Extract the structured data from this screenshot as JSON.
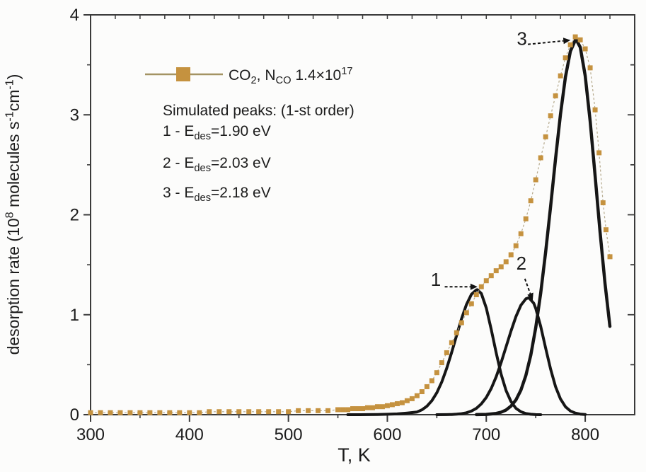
{
  "figure": {
    "background": "#fcfcfb",
    "frame_color": "#3a3a3a",
    "text_color": "#1c1c1c"
  },
  "chart_data": {
    "type": "line",
    "title": "",
    "xlabel": "T, K",
    "ylabel": "desorption rate (10^8 molecules s^-1 cm^-1)",
    "ylabel_segments": [
      {
        "t": "desorption rate (10"
      },
      {
        "t": "8",
        "sup": true
      },
      {
        "t": " molecules s"
      },
      {
        "t": "-1",
        "sup": true
      },
      {
        "t": "cm"
      },
      {
        "t": "-1",
        "sup": true
      },
      {
        "t": ")"
      }
    ],
    "xlim": [
      300,
      850
    ],
    "ylim": [
      0,
      4
    ],
    "x_major_ticks": [
      300,
      400,
      500,
      600,
      700,
      800
    ],
    "x_minor_step": 50,
    "x_top_minor_step": 25,
    "y_major_ticks": [
      0,
      1,
      2,
      3,
      4
    ],
    "y_minor_step": 0.5,
    "grid": false,
    "legend_position": "upper-left-inside",
    "series": [
      {
        "name": "simulated-peak-1",
        "type": "line",
        "color": "#161616",
        "width": 4,
        "E_des_eV": 1.9,
        "peak_T_K": 691,
        "peak_height": 1.25,
        "points": [
          [
            560,
            0.0
          ],
          [
            570,
            0.0
          ],
          [
            580,
            0.001
          ],
          [
            590,
            0.002
          ],
          [
            600,
            0.004
          ],
          [
            610,
            0.008
          ],
          [
            620,
            0.016
          ],
          [
            630,
            0.027
          ],
          [
            635,
            0.049
          ],
          [
            640,
            0.085
          ],
          [
            645,
            0.14
          ],
          [
            650,
            0.22
          ],
          [
            655,
            0.328
          ],
          [
            660,
            0.463
          ],
          [
            665,
            0.622
          ],
          [
            670,
            0.792
          ],
          [
            675,
            0.96
          ],
          [
            680,
            1.103
          ],
          [
            685,
            1.204
          ],
          [
            690,
            1.249
          ],
          [
            691,
            1.25
          ],
          [
            695,
            1.212
          ],
          [
            700,
            1.067
          ],
          [
            705,
            0.852
          ],
          [
            710,
            0.618
          ],
          [
            715,
            0.406
          ],
          [
            720,
            0.242
          ],
          [
            725,
            0.131
          ],
          [
            730,
            0.064
          ],
          [
            735,
            0.029
          ],
          [
            740,
            0.011
          ],
          [
            745,
            0.004
          ],
          [
            750,
            0.001
          ],
          [
            755,
            0.0
          ]
        ]
      },
      {
        "name": "simulated-peak-2",
        "type": "line",
        "color": "#161616",
        "width": 4,
        "E_des_eV": 2.03,
        "peak_T_K": 743,
        "peak_height": 1.17,
        "points": [
          [
            650,
            0.0
          ],
          [
            660,
            0.001
          ],
          [
            665,
            0.002
          ],
          [
            670,
            0.005
          ],
          [
            675,
            0.01
          ],
          [
            680,
            0.019
          ],
          [
            685,
            0.036
          ],
          [
            690,
            0.064
          ],
          [
            695,
            0.108
          ],
          [
            700,
            0.173
          ],
          [
            705,
            0.263
          ],
          [
            710,
            0.38
          ],
          [
            715,
            0.52
          ],
          [
            720,
            0.678
          ],
          [
            725,
            0.837
          ],
          [
            730,
            0.982
          ],
          [
            735,
            1.095
          ],
          [
            740,
            1.159
          ],
          [
            743,
            1.17
          ],
          [
            748,
            1.114
          ],
          [
            750,
            1.063
          ],
          [
            755,
            0.883
          ],
          [
            760,
            0.665
          ],
          [
            765,
            0.455
          ],
          [
            770,
            0.282
          ],
          [
            775,
            0.158
          ],
          [
            780,
            0.08
          ],
          [
            785,
            0.037
          ],
          [
            790,
            0.016
          ],
          [
            795,
            0.006
          ],
          [
            800,
            0.002
          ]
        ]
      },
      {
        "name": "simulated-peak-3",
        "type": "line",
        "color": "#161616",
        "width": 4.5,
        "E_des_eV": 2.18,
        "peak_T_K": 791,
        "peak_height": 3.75,
        "points": [
          [
            690,
            0.001
          ],
          [
            700,
            0.003
          ],
          [
            710,
            0.013
          ],
          [
            715,
            0.025
          ],
          [
            720,
            0.047
          ],
          [
            725,
            0.086
          ],
          [
            730,
            0.148
          ],
          [
            735,
            0.246
          ],
          [
            740,
            0.392
          ],
          [
            745,
            0.597
          ],
          [
            750,
            0.872
          ],
          [
            755,
            1.218
          ],
          [
            760,
            1.629
          ],
          [
            765,
            2.085
          ],
          [
            770,
            2.557
          ],
          [
            775,
            3.003
          ],
          [
            780,
            3.376
          ],
          [
            785,
            3.635
          ],
          [
            790,
            3.747
          ],
          [
            791,
            3.75
          ],
          [
            795,
            3.676
          ],
          [
            800,
            3.389
          ],
          [
            805,
            2.935
          ],
          [
            810,
            2.388
          ],
          [
            815,
            1.825
          ],
          [
            820,
            1.311
          ],
          [
            825,
            0.884
          ]
        ]
      },
      {
        "name": "experimental-co2",
        "type": "scatter-line",
        "color": "#c5923f",
        "line_color": "#b5a98c",
        "marker": "square",
        "marker_size": 7,
        "points": [
          [
            300,
            0.02
          ],
          [
            310,
            0.02
          ],
          [
            320,
            0.02
          ],
          [
            330,
            0.02
          ],
          [
            340,
            0.02
          ],
          [
            350,
            0.02
          ],
          [
            360,
            0.02
          ],
          [
            370,
            0.02
          ],
          [
            380,
            0.02
          ],
          [
            390,
            0.02
          ],
          [
            400,
            0.02
          ],
          [
            410,
            0.02
          ],
          [
            420,
            0.03
          ],
          [
            430,
            0.03
          ],
          [
            440,
            0.03
          ],
          [
            450,
            0.03
          ],
          [
            460,
            0.03
          ],
          [
            470,
            0.03
          ],
          [
            480,
            0.03
          ],
          [
            490,
            0.03
          ],
          [
            500,
            0.03
          ],
          [
            510,
            0.04
          ],
          [
            520,
            0.04
          ],
          [
            530,
            0.04
          ],
          [
            540,
            0.04
          ],
          [
            550,
            0.05
          ],
          [
            555,
            0.05
          ],
          [
            560,
            0.05
          ],
          [
            565,
            0.06
          ],
          [
            570,
            0.06
          ],
          [
            575,
            0.06
          ],
          [
            580,
            0.07
          ],
          [
            585,
            0.07
          ],
          [
            590,
            0.08
          ],
          [
            595,
            0.08
          ],
          [
            600,
            0.09
          ],
          [
            605,
            0.1
          ],
          [
            610,
            0.11
          ],
          [
            615,
            0.12
          ],
          [
            620,
            0.14
          ],
          [
            625,
            0.16
          ],
          [
            630,
            0.19
          ],
          [
            635,
            0.23
          ],
          [
            640,
            0.28
          ],
          [
            645,
            0.34
          ],
          [
            650,
            0.42
          ],
          [
            655,
            0.52
          ],
          [
            660,
            0.62
          ],
          [
            665,
            0.72
          ],
          [
            670,
            0.82
          ],
          [
            675,
            0.92
          ],
          [
            680,
            1.02
          ],
          [
            685,
            1.11
          ],
          [
            690,
            1.2
          ],
          [
            695,
            1.28
          ],
          [
            700,
            1.34
          ],
          [
            705,
            1.39
          ],
          [
            710,
            1.44
          ],
          [
            715,
            1.48
          ],
          [
            720,
            1.53
          ],
          [
            725,
            1.6
          ],
          [
            730,
            1.69
          ],
          [
            735,
            1.81
          ],
          [
            740,
            1.96
          ],
          [
            745,
            2.14
          ],
          [
            750,
            2.35
          ],
          [
            755,
            2.57
          ],
          [
            760,
            2.78
          ],
          [
            765,
            2.99
          ],
          [
            770,
            3.19
          ],
          [
            775,
            3.39
          ],
          [
            780,
            3.57
          ],
          [
            785,
            3.7
          ],
          [
            790,
            3.78
          ],
          [
            795,
            3.75
          ],
          [
            800,
            3.66
          ],
          [
            805,
            3.47
          ],
          [
            810,
            3.05
          ],
          [
            814,
            2.62
          ],
          [
            818,
            2.12
          ],
          [
            821,
            1.85
          ],
          [
            825,
            1.58
          ]
        ]
      }
    ],
    "annotations": [
      {
        "label": "1",
        "label_T": 649,
        "label_v": 1.29,
        "tail": [
          658,
          1.28
        ],
        "tip": [
          684,
          1.28
        ]
      },
      {
        "label": "2",
        "label_T": 735.5,
        "label_v": 1.45,
        "tail": [
          739,
          1.36
        ],
        "tip": [
          744.5,
          1.21
        ]
      },
      {
        "label": "3",
        "label_T": 736,
        "label_v": 3.7,
        "tail": [
          742,
          3.705
        ],
        "tip": [
          778,
          3.74
        ]
      }
    ],
    "legend": {
      "marker_color": "#c5923f",
      "line_color": "#a39363",
      "entry_segments": [
        {
          "t": "CO"
        },
        {
          "t": "2",
          "sub": true
        },
        {
          "t": ", N"
        },
        {
          "t": "CO",
          "sub": true
        },
        {
          "t": "  1.4×10"
        },
        {
          "t": "17",
          "sup": true
        }
      ],
      "sim_header": "Simulated peaks: (1-st order)",
      "sim_items": [
        {
          "segments": [
            {
              "t": "1  - E"
            },
            {
              "t": "des",
              "sub": true
            },
            {
              "t": "=1.90 eV"
            }
          ]
        },
        {
          "segments": [
            {
              "t": "2  - E"
            },
            {
              "t": "des",
              "sub": true
            },
            {
              "t": "=2.03 eV"
            }
          ]
        },
        {
          "segments": [
            {
              "t": "3  - E"
            },
            {
              "t": "des",
              "sub": true
            },
            {
              "t": "=2.18 eV"
            }
          ]
        }
      ]
    }
  }
}
